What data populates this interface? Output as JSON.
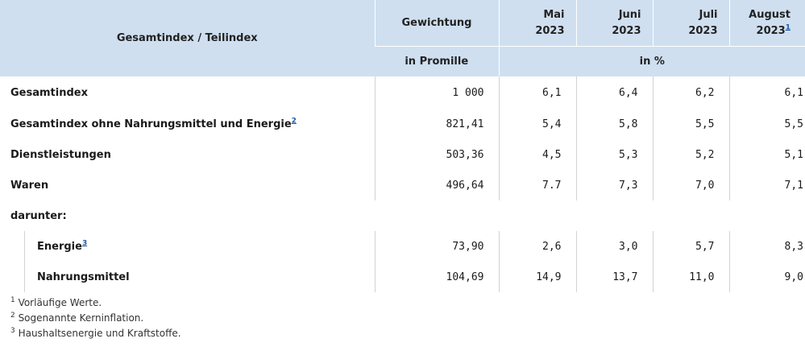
{
  "header": {
    "col_label": "Gesamtindex / Teilindex",
    "col_weight": "Gewichtung",
    "weight_unit": "in Promille",
    "change_unit": "in %",
    "months": [
      {
        "name": "Mai",
        "year": "2023",
        "fn": ""
      },
      {
        "name": "Juni",
        "year": "2023",
        "fn": ""
      },
      {
        "name": "Juli",
        "year": "2023",
        "fn": ""
      },
      {
        "name": "August",
        "year": "2023",
        "fn": "1"
      }
    ]
  },
  "rows": [
    {
      "label": "Gesamtindex",
      "fn": "",
      "weight": "1 000",
      "values": [
        "6,1",
        "6,4",
        "6,2",
        "6,1"
      ]
    },
    {
      "label": "Gesamtindex ohne Nahrungsmittel und Energie",
      "fn": "2",
      "weight": "821,41",
      "values": [
        "5,4",
        "5,8",
        "5,5",
        "5,5"
      ]
    },
    {
      "label": "Dienstleistungen",
      "fn": "",
      "weight": "503,36",
      "values": [
        "4,5",
        "5,3",
        "5,2",
        "5,1"
      ]
    },
    {
      "label": "Waren",
      "fn": "",
      "weight": "496,64",
      "values": [
        "7.7",
        "7,3",
        "7,0",
        "7,1"
      ]
    }
  ],
  "subheading": "darunter:",
  "subrows": [
    {
      "label": "Energie",
      "fn": "3",
      "weight": "73,90",
      "values": [
        "2,6",
        "3,0",
        "5,7",
        "8,3"
      ]
    },
    {
      "label": "Nahrungsmittel",
      "fn": "",
      "weight": "104,69",
      "values": [
        "14,9",
        "13,7",
        "11,0",
        "9,0"
      ]
    }
  ],
  "footnotes": [
    {
      "num": "1",
      "text": "Vorläufige Werte."
    },
    {
      "num": "2",
      "text": "Sogenannte Kerninflation."
    },
    {
      "num": "3",
      "text": "Haushaltsenergie und Kraftstoffe."
    }
  ]
}
